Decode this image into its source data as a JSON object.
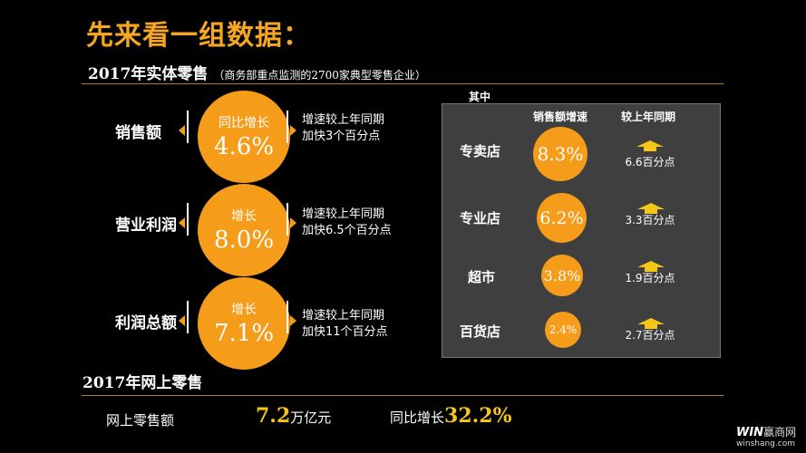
{
  "title": "先来看一组数据：",
  "retail": {
    "heading": "2017年实体零售",
    "note": "（商务部重点监测的2700家典型零售企业）",
    "rows": [
      {
        "label": "销售额",
        "circle_label": "同比增长",
        "value": "4.6%",
        "desc1": "增速较上年同期",
        "desc2": "加快3个百分点"
      },
      {
        "label": "营业利润",
        "circle_label": "增长",
        "value": "8.0%",
        "desc1": "增速较上年同期",
        "desc2": "加快6.5个百分点"
      },
      {
        "label": "利润总额",
        "circle_label": "增长",
        "value": "7.1%",
        "desc1": "增速较上年同期",
        "desc2": "加快11个百分点"
      }
    ]
  },
  "panel": {
    "caption": "其中",
    "col_growth": "销售额增速",
    "col_compare": "较上年同期",
    "stores": [
      {
        "name": "专卖店",
        "value": "8.3%",
        "compare": "6.6百分点"
      },
      {
        "name": "专业店",
        "value": "6.2%",
        "compare": "3.3百分点"
      },
      {
        "name": "超市",
        "value": "3.8%",
        "compare": "1.9百分点"
      },
      {
        "name": "百货店",
        "value": "2.4%",
        "compare": "2.7百分点"
      }
    ]
  },
  "online": {
    "heading": "2017年网上零售",
    "label": "网上零售额",
    "amount": "7.2",
    "amount_unit": "万亿元",
    "growth_label": "同比增长",
    "growth_value": "32.2%"
  },
  "watermark": {
    "logo": "WIN",
    "brand": "赢商网",
    "domain": "winshang.com"
  },
  "colors": {
    "accent": "#f5a623",
    "circle": "#f59c1a",
    "highlight": "#f5c518",
    "panel": "#3f3f3f"
  }
}
